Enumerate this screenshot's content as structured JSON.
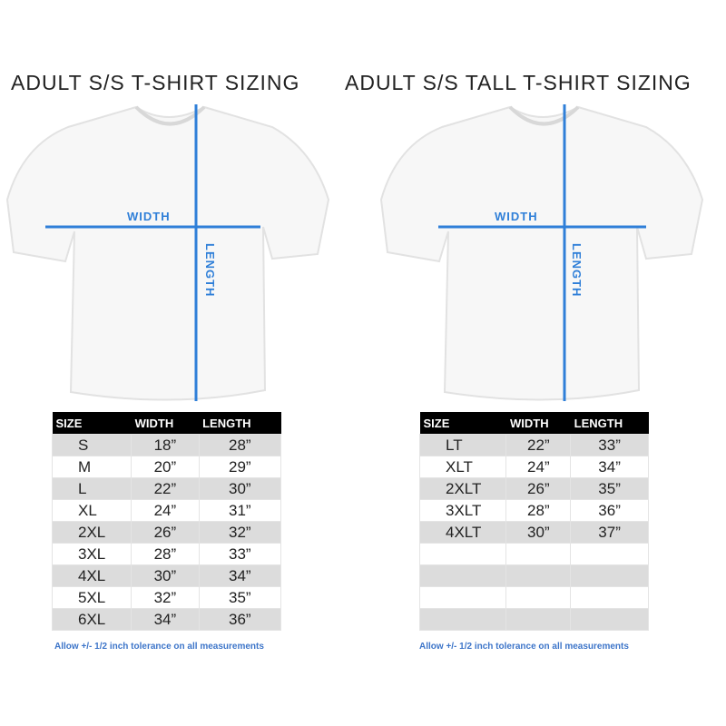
{
  "accent": "#2f7fd8",
  "charts": [
    {
      "title": "ADULT S/S T-SHIRT SIZING",
      "width_label": "WIDTH",
      "length_label": "LENGTH",
      "headers": [
        "SIZE",
        "WIDTH",
        "LENGTH"
      ],
      "rows": [
        [
          "S",
          "18”",
          "28”"
        ],
        [
          "M",
          "20”",
          "29”"
        ],
        [
          "L",
          "22”",
          "30”"
        ],
        [
          "XL",
          "24”",
          "31”"
        ],
        [
          "2XL",
          "26”",
          "32”"
        ],
        [
          "3XL",
          "28”",
          "33”"
        ],
        [
          "4XL",
          "30”",
          "34”"
        ],
        [
          "5XL",
          "32”",
          "35”"
        ],
        [
          "6XL",
          "34”",
          "36”"
        ]
      ],
      "note": "Allow +/- 1/2 inch tolerance on all measurements"
    },
    {
      "title": "ADULT S/S TALL T-SHIRT SIZING",
      "width_label": "WIDTH",
      "length_label": "LENGTH",
      "headers": [
        "SIZE",
        "WIDTH",
        "LENGTH"
      ],
      "rows": [
        [
          "LT",
          "22”",
          "33”"
        ],
        [
          "XLT",
          "24”",
          "34”"
        ],
        [
          "2XLT",
          "26”",
          "35”"
        ],
        [
          "3XLT",
          "28”",
          "36”"
        ],
        [
          "4XLT",
          "30”",
          "37”"
        ],
        [
          "",
          "",
          ""
        ],
        [
          "",
          "",
          ""
        ],
        [
          "",
          "",
          ""
        ],
        [
          "",
          "",
          ""
        ]
      ],
      "note": "Allow +/- 1/2 inch tolerance on all measurements"
    }
  ]
}
